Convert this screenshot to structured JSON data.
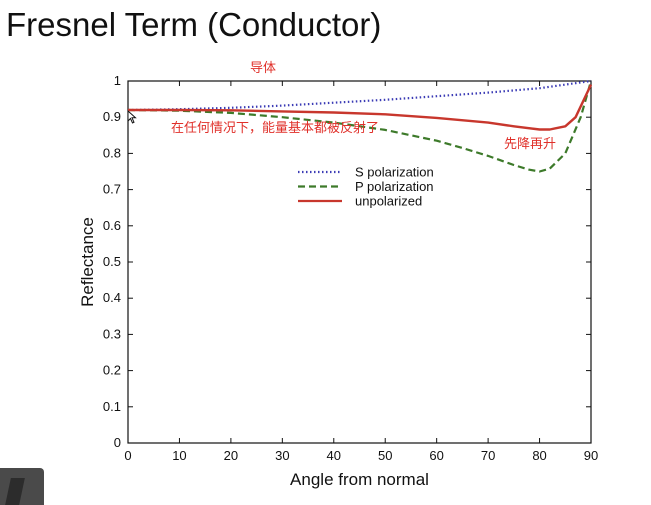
{
  "slide": {
    "title": "Fresnel Term (Conductor)"
  },
  "chart_data": {
    "type": "line",
    "title": "",
    "xlabel": "Angle from normal",
    "ylabel": "Reflectance",
    "xlim": [
      0,
      90
    ],
    "ylim": [
      0,
      1
    ],
    "x_ticks": [
      0,
      10,
      20,
      30,
      40,
      50,
      60,
      70,
      80,
      90
    ],
    "y_ticks": [
      0,
      0.1,
      0.2,
      0.3,
      0.4,
      0.5,
      0.6,
      0.7,
      0.8,
      0.9,
      1
    ],
    "y_tick_labels": [
      "0",
      "0.1",
      "0.2",
      "0.3",
      "0.4",
      "0.5",
      "0.6",
      "0.7",
      "0.8",
      "0.9",
      "1"
    ],
    "grid": false,
    "legend_position": "upper-middle",
    "series": [
      {
        "name": "S polarization",
        "style": "dotted",
        "color": "#3b3bb5",
        "x": [
          0,
          10,
          20,
          30,
          40,
          50,
          60,
          70,
          80,
          85,
          90
        ],
        "y": [
          0.92,
          0.922,
          0.926,
          0.932,
          0.94,
          0.948,
          0.958,
          0.968,
          0.98,
          0.99,
          1.0
        ]
      },
      {
        "name": "P polarization",
        "style": "dashed",
        "color": "#3d7a2a",
        "x": [
          0,
          10,
          20,
          30,
          40,
          50,
          55,
          60,
          65,
          70,
          75,
          78,
          80,
          82,
          85,
          88,
          90
        ],
        "y": [
          0.92,
          0.918,
          0.912,
          0.9,
          0.885,
          0.865,
          0.85,
          0.835,
          0.815,
          0.793,
          0.768,
          0.755,
          0.75,
          0.758,
          0.8,
          0.9,
          1.0
        ]
      },
      {
        "name": "unpolarized",
        "style": "solid",
        "color": "#c8372d",
        "x": [
          0,
          10,
          20,
          30,
          40,
          50,
          60,
          70,
          75,
          80,
          82,
          85,
          87,
          90
        ],
        "y": [
          0.92,
          0.92,
          0.919,
          0.916,
          0.913,
          0.908,
          0.898,
          0.885,
          0.875,
          0.866,
          0.866,
          0.875,
          0.9,
          0.99
        ]
      }
    ],
    "annotations": [
      {
        "text": "导体",
        "color": "#e0302a"
      },
      {
        "text": "在任何情况下，能量基本都被反射了",
        "color": "#e0302a"
      },
      {
        "text": "先降再升",
        "color": "#e0302a"
      }
    ]
  }
}
